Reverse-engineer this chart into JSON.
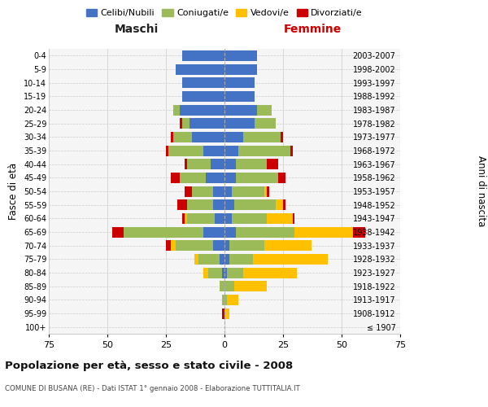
{
  "age_groups": [
    "100+",
    "95-99",
    "90-94",
    "85-89",
    "80-84",
    "75-79",
    "70-74",
    "65-69",
    "60-64",
    "55-59",
    "50-54",
    "45-49",
    "40-44",
    "35-39",
    "30-34",
    "25-29",
    "20-24",
    "15-19",
    "10-14",
    "5-9",
    "0-4"
  ],
  "birth_years": [
    "≤ 1907",
    "1908-1912",
    "1913-1917",
    "1918-1922",
    "1923-1927",
    "1928-1932",
    "1933-1937",
    "1938-1942",
    "1943-1947",
    "1948-1952",
    "1953-1957",
    "1958-1962",
    "1963-1967",
    "1968-1972",
    "1973-1977",
    "1978-1982",
    "1983-1987",
    "1988-1992",
    "1993-1997",
    "1998-2002",
    "2003-2007"
  ],
  "maschi": {
    "celibi": [
      0,
      0,
      0,
      0,
      1,
      2,
      5,
      9,
      4,
      5,
      5,
      8,
      6,
      9,
      14,
      15,
      19,
      18,
      18,
      21,
      18
    ],
    "coniugati": [
      0,
      0,
      1,
      2,
      6,
      9,
      16,
      34,
      12,
      11,
      9,
      11,
      10,
      15,
      8,
      3,
      3,
      0,
      0,
      0,
      0
    ],
    "vedovi": [
      0,
      0,
      0,
      0,
      2,
      2,
      2,
      0,
      1,
      0,
      0,
      0,
      0,
      0,
      0,
      0,
      0,
      0,
      0,
      0,
      0
    ],
    "divorziati": [
      0,
      1,
      0,
      0,
      0,
      0,
      2,
      5,
      1,
      4,
      3,
      4,
      1,
      1,
      1,
      1,
      0,
      0,
      0,
      0,
      0
    ]
  },
  "femmine": {
    "nubili": [
      0,
      0,
      0,
      0,
      1,
      2,
      2,
      5,
      3,
      4,
      3,
      5,
      5,
      6,
      8,
      13,
      14,
      13,
      13,
      14,
      14
    ],
    "coniugate": [
      0,
      0,
      1,
      4,
      7,
      10,
      15,
      25,
      15,
      18,
      14,
      18,
      13,
      22,
      16,
      9,
      6,
      0,
      0,
      0,
      0
    ],
    "vedove": [
      0,
      2,
      5,
      14,
      23,
      32,
      20,
      25,
      11,
      3,
      1,
      0,
      0,
      0,
      0,
      0,
      0,
      0,
      0,
      0,
      0
    ],
    "divorziate": [
      0,
      0,
      0,
      0,
      0,
      0,
      0,
      5,
      1,
      1,
      1,
      3,
      5,
      1,
      1,
      0,
      0,
      0,
      0,
      0,
      0
    ]
  },
  "colors": {
    "celibi": "#4472C4",
    "coniugati": "#9BBB59",
    "vedovi": "#FFC000",
    "divorziati": "#CC0000"
  },
  "title": "Popolazione per età, sesso e stato civile - 2008",
  "subtitle": "COMUNE DI BUSANA (RE) - Dati ISTAT 1° gennaio 2008 - Elaborazione TUTTITALIA.IT",
  "xlabel_left": "Maschi",
  "xlabel_right": "Femmine",
  "ylabel_left": "Fasce di età",
  "ylabel_right": "Anni di nascita",
  "xlim": 75,
  "legend_labels": [
    "Celibi/Nubili",
    "Coniugati/e",
    "Vedovi/e",
    "Divorziati/e"
  ],
  "bg_color": "#ffffff",
  "plot_bg_color": "#f5f5f5",
  "grid_color": "#cccccc"
}
